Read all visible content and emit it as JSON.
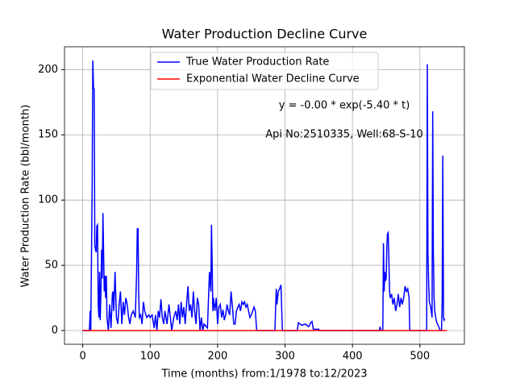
{
  "chart_data": {
    "type": "line",
    "title": "Water Production Decline Curve",
    "xlabel": "Time (months) from:1/1978 to:12/2023",
    "ylabel": "Water Production Rate (bbl/month)",
    "annotations": [
      "y = -0.00 * exp(-5.40 * t)",
      "Api No:2510335, Well:68-S-10"
    ],
    "xlim": [
      -27,
      566
    ],
    "ylim": [
      -10.5,
      217.5
    ],
    "xticks": [
      0,
      100,
      200,
      300,
      400,
      500
    ],
    "yticks": [
      0,
      50,
      100,
      150,
      200
    ],
    "grid": true,
    "legend": "upper center",
    "series": [
      {
        "name": "True Water Production Rate",
        "color": "#0000ff",
        "x": [
          0,
          10,
          11,
          12,
          14,
          15,
          16,
          17,
          18,
          19,
          20,
          21,
          22,
          23,
          24,
          25,
          26,
          27,
          28,
          29,
          30,
          31,
          32,
          33,
          34,
          35,
          36,
          37,
          38,
          40,
          42,
          44,
          45,
          46,
          48,
          50,
          52,
          54,
          56,
          58,
          60,
          62,
          64,
          66,
          68,
          70,
          72,
          75,
          78,
          80,
          81,
          82,
          83,
          84,
          86,
          88,
          90,
          92,
          95,
          98,
          100,
          103,
          106,
          108,
          110,
          112,
          114,
          116,
          118,
          120,
          122,
          125,
          128,
          130,
          132,
          135,
          138,
          140,
          142,
          144,
          146,
          148,
          150,
          152,
          154,
          156,
          158,
          160,
          162,
          164,
          166,
          168,
          170,
          172,
          174,
          176,
          178,
          180,
          185,
          188,
          190,
          191,
          192,
          193,
          194,
          196,
          198,
          200,
          202,
          204,
          206,
          208,
          210,
          212,
          214,
          216,
          218,
          220,
          222,
          224,
          226,
          228,
          230,
          232,
          234,
          236,
          238,
          240,
          242,
          244,
          246,
          248,
          250,
          252,
          254,
          256,
          258,
          285,
          287,
          288,
          290,
          292,
          294,
          296,
          318,
          320,
          322,
          325,
          330,
          335,
          338,
          340,
          342,
          350,
          352,
          440,
          441,
          442,
          445,
          446,
          447,
          448,
          449,
          450,
          451,
          452,
          453,
          454,
          455,
          456,
          458,
          460,
          462,
          464,
          466,
          468,
          470,
          472,
          474,
          476,
          478,
          480,
          482,
          484,
          485,
          510,
          511,
          512,
          513,
          514,
          515,
          516,
          518,
          519,
          520,
          521,
          522,
          524,
          526,
          528,
          530,
          532,
          533,
          534,
          535,
          536,
          537
        ],
        "values": [
          0,
          0,
          15,
          0,
          110,
          207,
          186,
          185,
          65,
          62,
          60,
          80,
          81,
          20,
          10,
          45,
          8,
          30,
          62,
          40,
          90,
          60,
          30,
          42,
          25,
          42,
          10,
          5,
          0,
          20,
          2,
          28,
          30,
          15,
          45,
          10,
          5,
          20,
          30,
          5,
          22,
          12,
          25,
          20,
          10,
          5,
          12,
          15,
          10,
          45,
          78,
          78,
          30,
          10,
          12,
          5,
          22,
          15,
          10,
          12,
          10,
          12,
          2,
          12,
          0,
          15,
          10,
          24,
          10,
          5,
          15,
          5,
          20,
          10,
          0,
          10,
          15,
          8,
          20,
          5,
          22,
          10,
          18,
          5,
          20,
          34,
          15,
          20,
          10,
          30,
          15,
          5,
          25,
          20,
          0,
          10,
          0,
          5,
          2,
          45,
          30,
          81,
          50,
          15,
          25,
          15,
          25,
          5,
          18,
          20,
          10,
          16,
          8,
          12,
          20,
          15,
          12,
          30,
          18,
          5,
          5,
          15,
          18,
          20,
          15,
          22,
          20,
          22,
          18,
          20,
          15,
          10,
          12,
          15,
          18,
          15,
          0,
          0,
          32,
          20,
          30,
          32,
          35,
          0,
          0,
          6,
          5,
          4,
          5,
          3,
          6,
          7,
          1,
          1,
          0,
          0,
          3,
          0,
          0,
          67,
          30,
          45,
          38,
          40,
          65,
          74,
          75,
          55,
          30,
          25,
          28,
          20,
          25,
          15,
          20,
          28,
          18,
          25,
          20,
          25,
          34,
          30,
          32,
          25,
          0,
          0,
          204,
          60,
          35,
          22,
          20,
          18,
          10,
          168,
          60,
          25,
          15,
          8,
          5,
          3,
          0,
          0,
          20,
          134,
          10,
          8,
          9
        ]
      },
      {
        "name": "Exponential Water Decline Curve",
        "color": "#ff0000",
        "x": [
          0,
          540
        ],
        "values": [
          0,
          0
        ]
      }
    ]
  }
}
